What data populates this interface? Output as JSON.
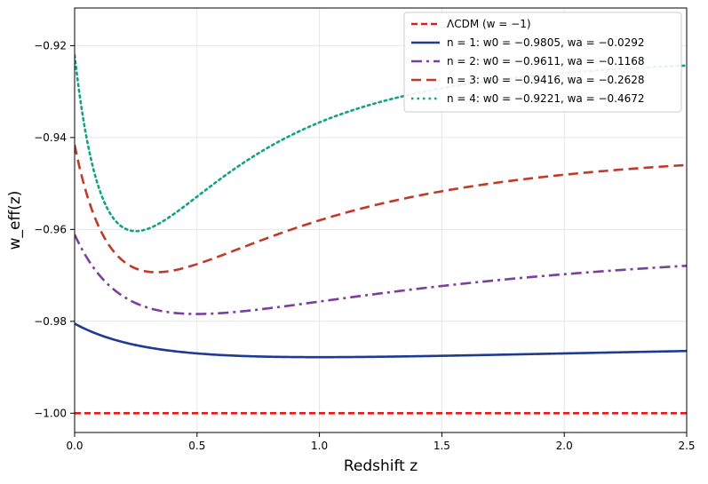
{
  "chart_data": {
    "type": "line",
    "title": "",
    "xlabel": "Redshift z",
    "ylabel": "w_eff(z)",
    "xlim": [
      0,
      2.5
    ],
    "ylim": [
      -1.0042,
      -0.9118
    ],
    "x_ticks": [
      0.0,
      0.5,
      1.0,
      1.5,
      2.0,
      2.5
    ],
    "x_tick_labels": [
      "0.0",
      "0.5",
      "1.0",
      "1.5",
      "2.0",
      "2.5"
    ],
    "y_ticks": [
      -1.0,
      -0.98,
      -0.96,
      -0.94,
      -0.92
    ],
    "y_tick_labels": [
      "−1.00",
      "−0.98",
      "−0.96",
      "−0.94",
      "−0.92"
    ],
    "grid": true,
    "legend_position": "top-right",
    "series": [
      {
        "name": "ΛCDM (w = −1)",
        "legend_label": "ΛCDM (w = −1)",
        "w0": -1.0,
        "wa": 0.0,
        "color": "#e41a1c",
        "dash": "dashed"
      },
      {
        "name": "n = 1: w0 = −0.9805, wa = −0.0292",
        "legend_label": "n = 1: w0 = −0.9805, wa = −0.0292",
        "w0": -0.9805,
        "wa": -0.0292,
        "color": "#1f3a93",
        "dash": "solid"
      },
      {
        "name": "n = 2: w0 = −0.9611, wa = −0.1168",
        "legend_label": "n = 2: w0 = −0.9611, wa = −0.1168",
        "w0": -0.9611,
        "wa": -0.1168,
        "color": "#7b3f9e",
        "dash": "dashdot"
      },
      {
        "name": "n = 3: w0 = −0.9416, wa = −0.2628",
        "legend_label": "n = 3: w0 = −0.9416, wa = −0.2628",
        "w0": -0.9416,
        "wa": -0.2628,
        "color": "#c0392b",
        "dash": "longdash"
      },
      {
        "name": "n = 4: w0 = −0.9221, wa = −0.4672",
        "legend_label": "n = 4: w0 = −0.9221, wa = −0.4672",
        "w0": -0.9221,
        "wa": -0.4672,
        "color": "#16a085",
        "dash": "dotted"
      }
    ]
  }
}
